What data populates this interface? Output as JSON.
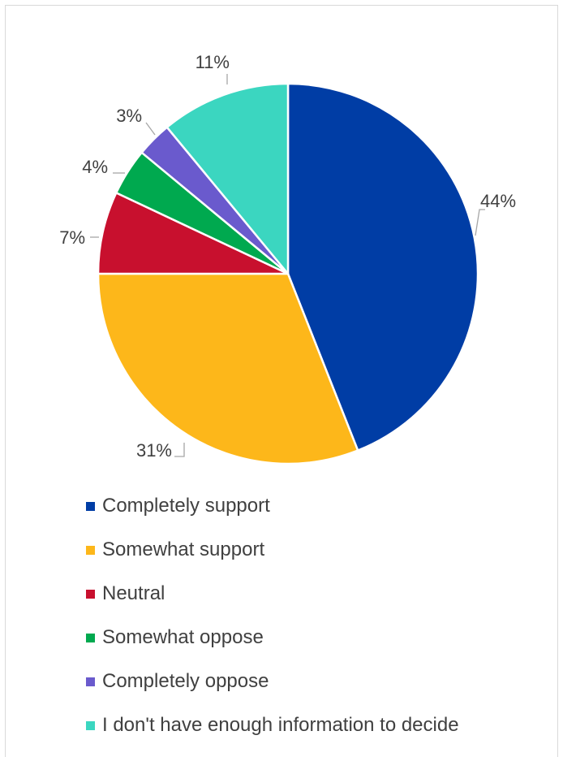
{
  "chart_data": {
    "type": "pie",
    "title": "",
    "categories": [
      "Completely support",
      "Somewhat support",
      "Neutral",
      "Somewhat oppose",
      "Completely oppose",
      "I don't have enough information to decide"
    ],
    "values": [
      44,
      31,
      7,
      4,
      3,
      11
    ],
    "labels": [
      "44%",
      "31%",
      "7%",
      "4%",
      "3%",
      "11%"
    ],
    "colors": [
      "#003DA5",
      "#FDB71A",
      "#C8102E",
      "#00A94F",
      "#6A5ACD",
      "#3BD6C0"
    ],
    "legend_position": "bottom",
    "start_angle": "12 o'clock",
    "direction": "clockwise"
  }
}
